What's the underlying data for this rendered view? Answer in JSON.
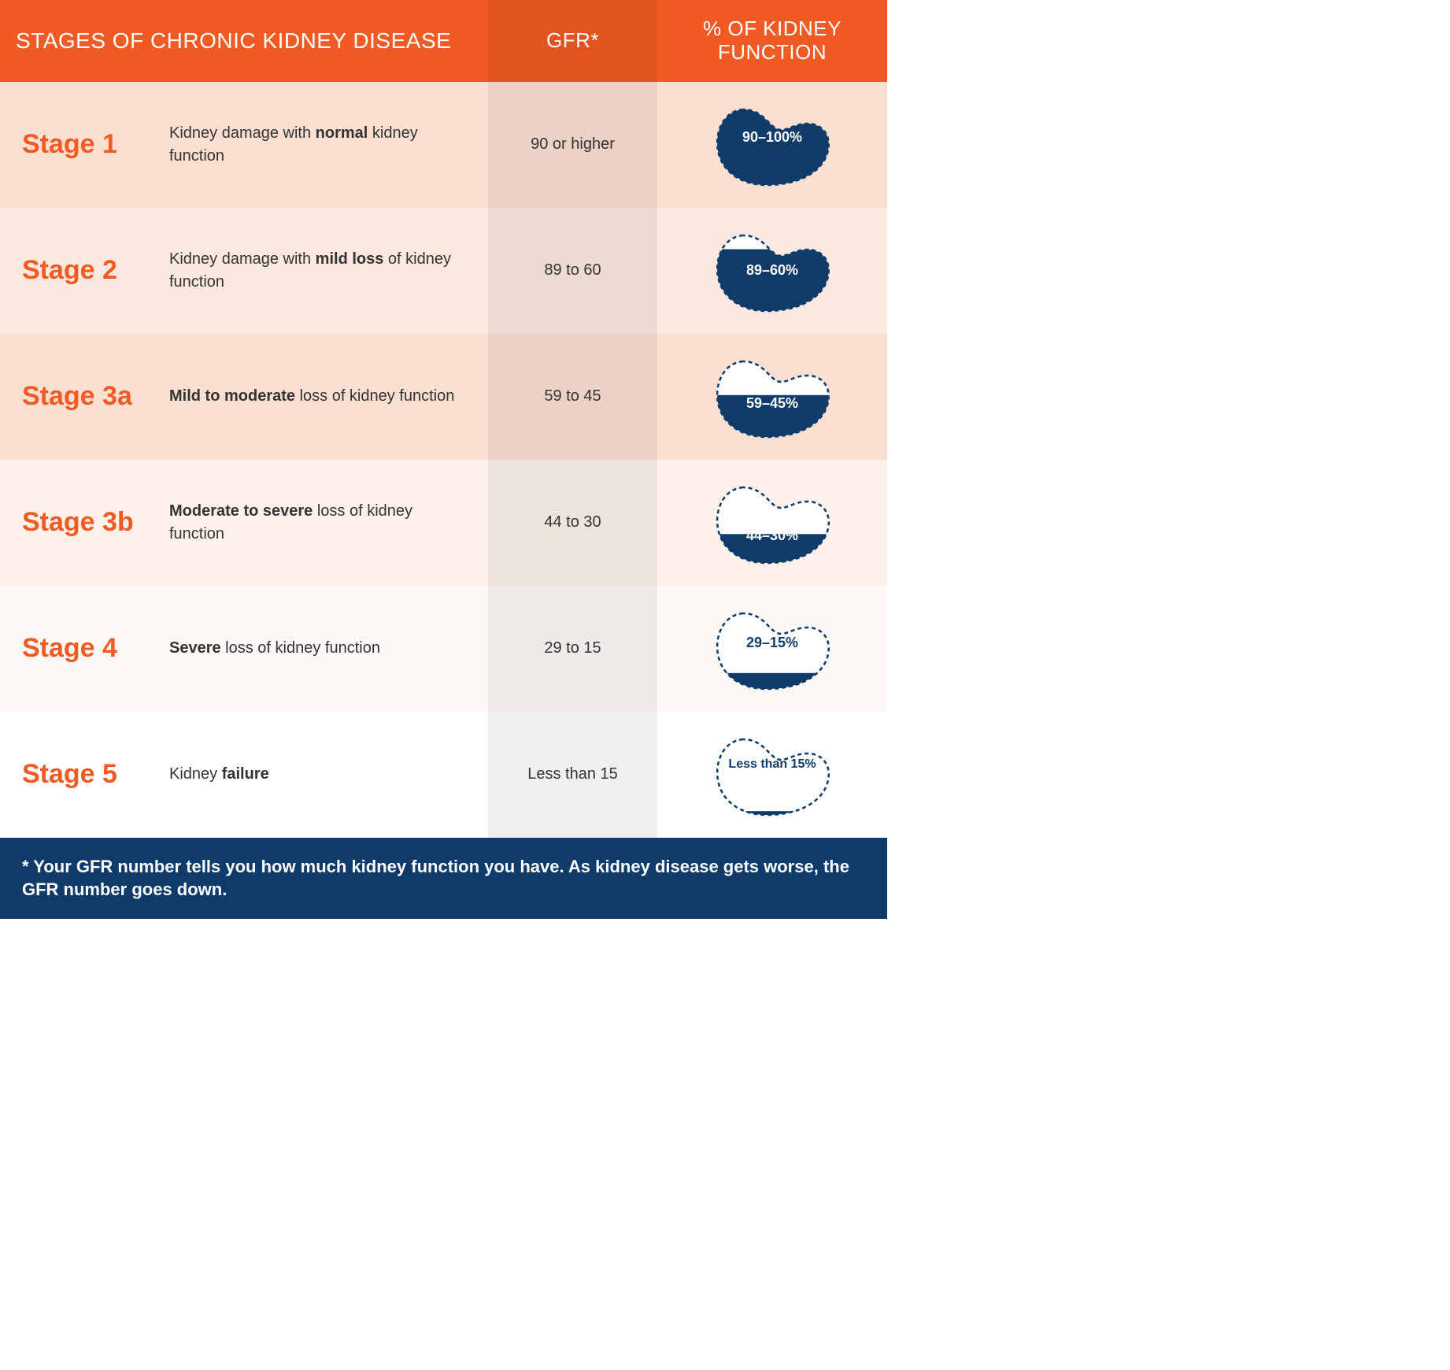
{
  "colors": {
    "header_main_bg": "#f15a22",
    "header_gfr_bg": "#e25320",
    "header_func_bg": "#f15a22",
    "header_text": "#ffffff",
    "stage_text": "#f15a22",
    "gfr_col_overlay": "rgba(0,0,0,0.06)",
    "footer_bg": "#0f3b6b",
    "footer_text": "#ffffff",
    "kidney_fill": "#0f3b6b",
    "kidney_outline": "#0f3b6b",
    "desc_text": "#333333"
  },
  "header": {
    "stages": "STAGES OF CHRONIC KIDNEY DISEASE",
    "gfr": "GFR*",
    "func": "% OF KIDNEY\nFUNCTION"
  },
  "rows": [
    {
      "stage": "Stage 1",
      "desc_html": "Kidney damage with <b>normal</b> kidney function",
      "gfr": "90 or higher",
      "percent_label": "90–100%",
      "fill_pct": 95,
      "row_bg": "#fbe0d2",
      "label_color": "#ffffff",
      "label_top_pct": 42
    },
    {
      "stage": "Stage 2",
      "desc_html": "Kidney damage with <b>mild loss</b> of kidney function",
      "gfr": "89 to 60",
      "percent_label": "89–60%",
      "fill_pct": 75,
      "row_bg": "#fce8de",
      "label_color": "#ffffff",
      "label_top_pct": 50
    },
    {
      "stage": "Stage 3a",
      "desc_html": "<b>Mild to moderate</b> loss of kidney function",
      "gfr": "59 to 45",
      "percent_label": "59–45%",
      "fill_pct": 52,
      "row_bg": "#fbe0d2",
      "label_color": "#ffffff",
      "label_top_pct": 58
    },
    {
      "stage": "Stage 3b",
      "desc_html": "<b>Moderate to severe</b> loss of kidney function",
      "gfr": "44 to 30",
      "percent_label": "44–30%",
      "fill_pct": 37,
      "row_bg": "#fdf1ea",
      "label_color": "#ffffff",
      "label_top_pct": 66
    },
    {
      "stage": "Stage 4",
      "desc_html": "<b>Severe</b> loss of kidney function",
      "gfr": "29 to 15",
      "percent_label": "29–15%",
      "fill_pct": 22,
      "row_bg": "#fef9f6",
      "label_color": "#0f3b6b",
      "label_top_pct": 44
    },
    {
      "stage": "Stage 5",
      "desc_html": "Kidney <b>failure</b>",
      "gfr": "Less than 15",
      "percent_label": "Less than 15%",
      "fill_pct": 8,
      "row_bg": "#ffffff",
      "label_color": "#0f3b6b",
      "label_top_pct": 38
    }
  ],
  "footnote": "* Your GFR number tells you how much kidney function you have. As kidney disease gets worse, the GFR number goes down."
}
